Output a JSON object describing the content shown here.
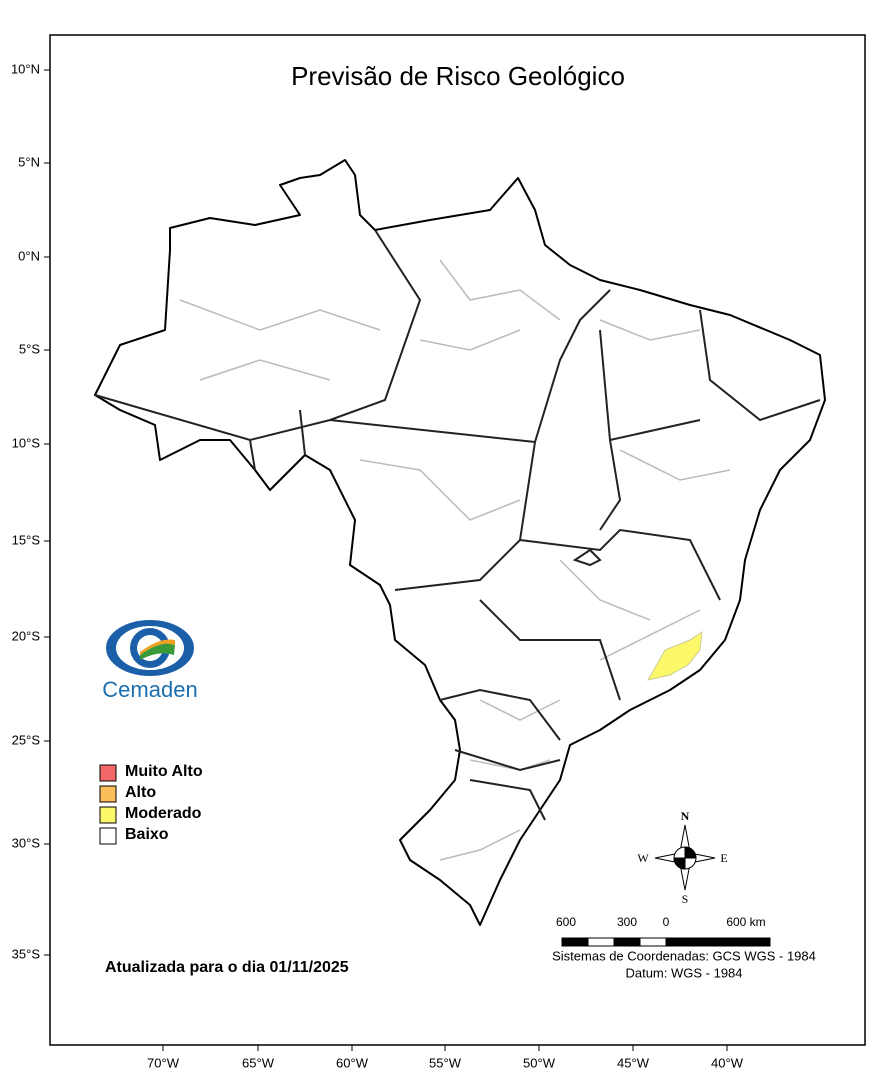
{
  "title": "Previsão de Risco Geológico",
  "lat_labels": [
    "10°N",
    "5°N",
    "0°N",
    "5°S",
    "10°S",
    "15°S",
    "20°S",
    "25°S",
    "30°S",
    "35°S"
  ],
  "lon_labels": [
    "70°W",
    "65°W",
    "60°W",
    "55°W",
    "50°W",
    "45°W",
    "40°W"
  ],
  "logo": "Cemaden",
  "legend": [
    {
      "label": "Muito Alto",
      "color": "#f26868"
    },
    {
      "label": "Alto",
      "color": "#fbbd5a"
    },
    {
      "label": "Moderado",
      "color": "#fbf86a"
    },
    {
      "label": "Baixo",
      "color": "#ffffff"
    }
  ],
  "updated": "Atualizada para o dia 01/11/2025",
  "compass": {
    "north": "N",
    "south": "S",
    "east": "E",
    "west": "W"
  },
  "scale_labels": [
    "600",
    "300",
    "0",
    "600 km"
  ],
  "coordinate_system": "Sistemas de Coordenadas: GCS WGS - 1984",
  "datum": "Datum: WGS - 1984"
}
